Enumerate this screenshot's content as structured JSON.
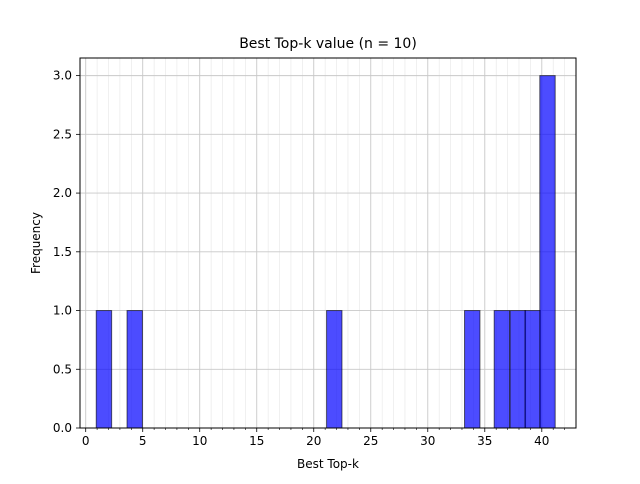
{
  "chart_data": {
    "type": "bar",
    "title": "Best Top-k value (n = 10)",
    "xlabel": "Best Top-k",
    "ylabel": "Frequency",
    "xlim": [
      -0.5,
      43
    ],
    "ylim": [
      0,
      3.15
    ],
    "xticks": [
      0,
      5,
      10,
      15,
      20,
      25,
      30,
      35,
      40
    ],
    "xtick_labels": [
      "0",
      "5",
      "10",
      "15",
      "20",
      "25",
      "30",
      "35",
      "40"
    ],
    "yticks": [
      0,
      0.5,
      1.0,
      1.5,
      2.0,
      2.5,
      3.0
    ],
    "ytick_labels": [
      "0.0",
      "0.5",
      "1.0",
      "1.5",
      "2.0",
      "2.5",
      "3.0"
    ],
    "grid": true,
    "bar_width": 1.35,
    "bars": [
      {
        "x": 1.6,
        "value": 1
      },
      {
        "x": 4.3,
        "value": 1
      },
      {
        "x": 21.8,
        "value": 1
      },
      {
        "x": 33.9,
        "value": 1
      },
      {
        "x": 36.5,
        "value": 1
      },
      {
        "x": 37.9,
        "value": 1
      },
      {
        "x": 39.2,
        "value": 1
      },
      {
        "x": 40.5,
        "value": 3
      }
    ],
    "colors": {
      "bar_fill": "#0000ff",
      "bar_edge": "#000000"
    }
  }
}
